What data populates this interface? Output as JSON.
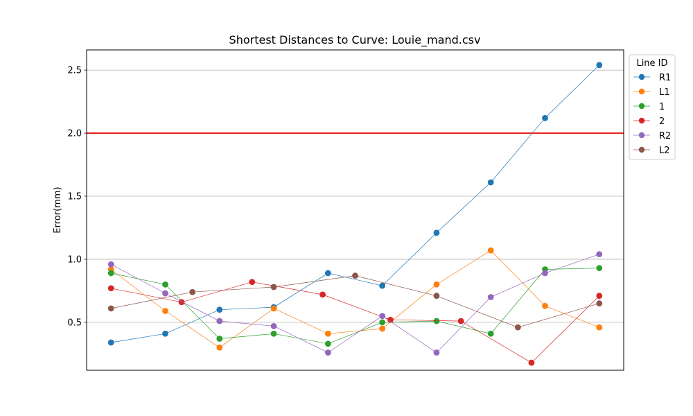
{
  "chart_data": {
    "type": "line",
    "title": "Shortest Distances to Curve: Louie_mand.csv",
    "xlabel": "",
    "ylabel": "Error(mm)",
    "ylim": [
      0.12,
      2.66
    ],
    "xlim": [
      0.55,
      10.45
    ],
    "yticks": [
      0.5,
      1.0,
      1.5,
      2.0,
      2.5
    ],
    "ytick_labels": [
      "0.5",
      "1.0",
      "1.5",
      "2.0",
      "2.5"
    ],
    "grid": "horizontal",
    "threshold": {
      "value": 2.0,
      "color": "#e8241c"
    },
    "legend": {
      "title": "Line ID",
      "placement": "upper-right-outside"
    },
    "series": [
      {
        "name": "R1",
        "color": "#1f77b4",
        "x": [
          1,
          2,
          3,
          4,
          5,
          6,
          7,
          8,
          9,
          10
        ],
        "values": [
          0.34,
          0.41,
          0.6,
          0.62,
          0.89,
          0.79,
          1.21,
          1.61,
          2.12,
          2.54
        ]
      },
      {
        "name": "L1",
        "color": "#ff7f0e",
        "x": [
          1,
          2,
          3,
          4,
          5,
          6,
          7,
          8,
          9,
          10
        ],
        "values": [
          0.92,
          0.59,
          0.3,
          0.61,
          0.41,
          0.45,
          0.8,
          1.07,
          0.63,
          0.46
        ]
      },
      {
        "name": "1",
        "color": "#2ca02c",
        "x": [
          1,
          2,
          3,
          4,
          5,
          6,
          7,
          8,
          9,
          10
        ],
        "values": [
          0.89,
          0.8,
          0.37,
          0.41,
          0.33,
          0.5,
          0.51,
          0.41,
          0.92,
          0.93
        ]
      },
      {
        "name": "2",
        "color": "#d62728",
        "x": [
          1,
          2.3,
          3.6,
          4.9,
          6.15,
          7.45,
          8.75,
          10
        ],
        "values": [
          0.77,
          0.66,
          0.82,
          0.72,
          0.52,
          0.51,
          0.18,
          0.71
        ]
      },
      {
        "name": "R2",
        "color": "#9467bd",
        "x": [
          1,
          2,
          3,
          4,
          5,
          6,
          7,
          8,
          9,
          10
        ],
        "values": [
          0.96,
          0.73,
          0.51,
          0.47,
          0.26,
          0.55,
          0.26,
          0.7,
          0.89,
          1.04
        ]
      },
      {
        "name": "L2",
        "color": "#8c564b",
        "x": [
          1,
          2.5,
          4,
          5.5,
          7,
          8.5,
          10
        ],
        "values": [
          0.61,
          0.74,
          0.78,
          0.87,
          0.71,
          0.46,
          0.65
        ]
      }
    ]
  }
}
